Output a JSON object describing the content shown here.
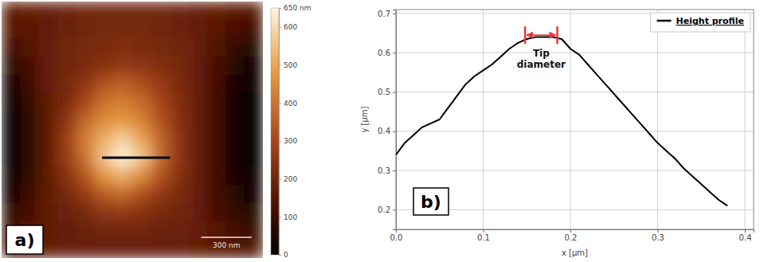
{
  "chart_data": [
    {
      "type": "heatmap",
      "panel_label": "a)",
      "xlim": [
        0,
        1550
      ],
      "ylim": [
        0,
        1550
      ],
      "tick_labels": false,
      "cells": [
        [
          160,
          170,
          180,
          190,
          200,
          200,
          200,
          200,
          200,
          190,
          180,
          170,
          160,
          150
        ],
        [
          150,
          160,
          180,
          190,
          200,
          210,
          210,
          210,
          200,
          190,
          180,
          160,
          130,
          110
        ],
        [
          120,
          150,
          180,
          200,
          210,
          220,
          230,
          220,
          210,
          200,
          180,
          140,
          90,
          60
        ],
        [
          70,
          130,
          180,
          200,
          220,
          240,
          260,
          250,
          230,
          210,
          180,
          130,
          60,
          30
        ],
        [
          40,
          110,
          180,
          210,
          250,
          330,
          360,
          320,
          270,
          220,
          180,
          120,
          50,
          20
        ],
        [
          20,
          90,
          170,
          220,
          300,
          400,
          420,
          380,
          300,
          230,
          180,
          110,
          40,
          10
        ],
        [
          10,
          80,
          170,
          250,
          380,
          450,
          480,
          430,
          330,
          240,
          180,
          110,
          40,
          10
        ],
        [
          10,
          80,
          170,
          280,
          420,
          520,
          580,
          500,
          370,
          250,
          180,
          110,
          40,
          10
        ],
        [
          10,
          80,
          170,
          270,
          400,
          560,
          640,
          560,
          380,
          250,
          180,
          110,
          40,
          10
        ],
        [
          20,
          90,
          170,
          240,
          340,
          470,
          520,
          450,
          330,
          240,
          180,
          110,
          50,
          20
        ],
        [
          40,
          110,
          170,
          210,
          270,
          350,
          380,
          320,
          260,
          220,
          180,
          120,
          60,
          30
        ],
        [
          80,
          130,
          170,
          190,
          210,
          250,
          260,
          240,
          210,
          200,
          180,
          130,
          90,
          60
        ],
        [
          120,
          150,
          170,
          180,
          190,
          200,
          200,
          200,
          190,
          190,
          180,
          150,
          120,
          100
        ],
        [
          150,
          160,
          170,
          180,
          180,
          180,
          180,
          180,
          180,
          180,
          170,
          160,
          150,
          140
        ]
      ],
      "colorbar": {
        "range": [
          0,
          650
        ],
        "ticks": [
          {
            "value": 650,
            "label": "650 nm"
          },
          600,
          500,
          400,
          300,
          200,
          100,
          0
        ]
      },
      "scale_bar": {
        "length": 300,
        "label": "300 nm"
      },
      "profile_line": {
        "x": [
          596,
          1000
        ],
        "y": [
          944,
          944
        ],
        "color": "#000000"
      }
    },
    {
      "type": "line",
      "panel_label": "b)",
      "x_label": "x [µm]",
      "y_label": "y [µm]",
      "xlim": [
        0,
        0.41
      ],
      "ylim": [
        0.15,
        0.71
      ],
      "xticks": [
        {
          "value": 0,
          "label": "0.0"
        },
        0.1,
        0.2,
        0.3,
        0.4
      ],
      "yticks": [
        0.2,
        0.3,
        0.4,
        0.5,
        0.6,
        0.7
      ],
      "grid": true,
      "legend": "top-right",
      "x": [
        0,
        0.01,
        0.02,
        0.03,
        0.04,
        0.05,
        0.06,
        0.07,
        0.08,
        0.09,
        0.1,
        0.11,
        0.12,
        0.13,
        0.14,
        0.15,
        0.16,
        0.17,
        0.18,
        0.19,
        0.2,
        0.21,
        0.22,
        0.23,
        0.24,
        0.25,
        0.26,
        0.27,
        0.28,
        0.29,
        0.3,
        0.31,
        0.32,
        0.33,
        0.34,
        0.35,
        0.36,
        0.37,
        0.38
      ],
      "series": [
        {
          "name": "Height profile",
          "color": "#000000",
          "values": [
            0.34,
            0.37,
            0.39,
            0.41,
            0.42,
            0.43,
            0.46,
            0.49,
            0.52,
            0.54,
            0.555,
            0.57,
            0.59,
            0.61,
            0.625,
            0.635,
            0.64,
            0.64,
            0.64,
            0.635,
            0.61,
            0.595,
            0.57,
            0.545,
            0.52,
            0.495,
            0.47,
            0.445,
            0.42,
            0.395,
            0.37,
            0.35,
            0.33,
            0.305,
            0.285,
            0.265,
            0.245,
            0.225,
            0.21
          ]
        }
      ],
      "annotations": [
        {
          "text": "Tip diameter",
          "x": [
            0.148,
            0.185
          ],
          "y": 0.645,
          "color": "#e8383d"
        }
      ]
    }
  ]
}
